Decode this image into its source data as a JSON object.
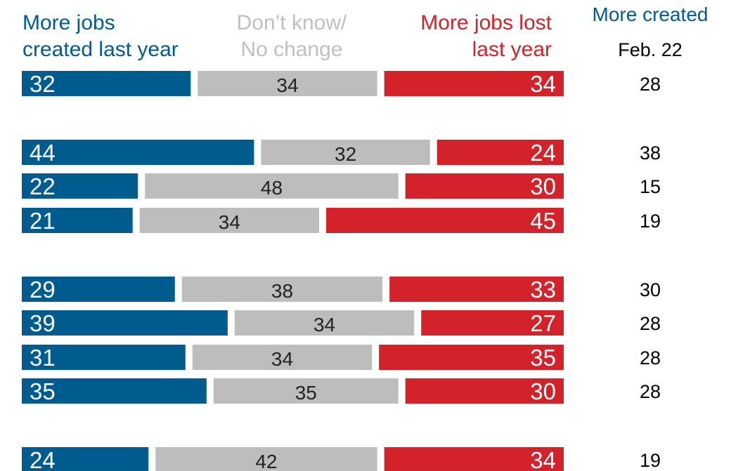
{
  "headers": {
    "created": [
      "More jobs",
      "created last year"
    ],
    "dont_know": [
      "Don’t know/",
      "No change"
    ],
    "lost": [
      "More jobs lost",
      "last year"
    ],
    "more_created": "More created",
    "date": "Feb. 22"
  },
  "colors": {
    "created": "#005c8e",
    "dont_know": "#bdbdbd",
    "lost": "#d4222b",
    "dont_know_text": "#c0c0c0",
    "label_dark": "#222222",
    "label_light": "#ffffff"
  },
  "chart_data": {
    "type": "bar",
    "stacked": true,
    "orientation": "horizontal",
    "series": [
      {
        "name": "More jobs created last year",
        "values": [
          32,
          44,
          22,
          21,
          29,
          39,
          31,
          35,
          24
        ]
      },
      {
        "name": "Don’t know/No change",
        "values": [
          34,
          32,
          48,
          34,
          38,
          34,
          34,
          35,
          42
        ]
      },
      {
        "name": "More jobs lost last year",
        "values": [
          34,
          24,
          30,
          45,
          33,
          27,
          35,
          30,
          34
        ]
      }
    ],
    "more_created_feb22": [
      28,
      38,
      15,
      19,
      30,
      28,
      28,
      28,
      19
    ],
    "groups": [
      [
        0
      ],
      [
        1,
        2,
        3
      ],
      [
        4,
        5,
        6,
        7
      ],
      [
        8
      ]
    ]
  }
}
